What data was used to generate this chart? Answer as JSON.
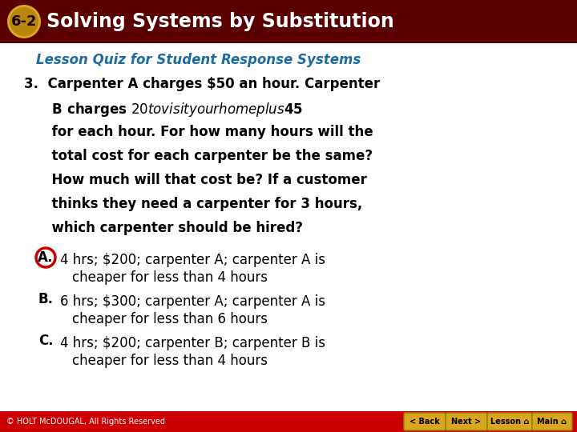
{
  "header_bg": "#5a0000",
  "badge_bg_outer": "#DAA520",
  "badge_bg_inner": "#B8860B",
  "header_number_text": "6-2",
  "header_title": "Solving Systems by Substitution",
  "header_text_color": "#FFFFFF",
  "subtitle": "Lesson Quiz for Student Response Systems",
  "subtitle_color": "#1E6B9E",
  "body_bg": "#FFFFFF",
  "question_color": "#000000",
  "answer_color": "#000000",
  "circle_A_color": "#CC0000",
  "footer_bg": "#CC0000",
  "footer_text": "© HOLT McDOUGAL, All Rights Reserved",
  "footer_text_color": "#FFFFFF",
  "button_bg": "#DAA520",
  "button_text_color": "#000000",
  "buttons": [
    "< Back",
    "Next >",
    "Lesson ⌂",
    "Main ⌂"
  ],
  "question_lines": [
    "3.  Carpenter A charges $50 an hour. Carpenter",
    "      B charges $20 to visit your home plus $45",
    "      for each hour. For how many hours will the",
    "      total cost for each carpenter be the same?",
    "      How much will that cost be? If a customer",
    "      thinks they need a carpenter for 3 hours,",
    "      which carpenter should be hired?"
  ],
  "answer_A_line1": "4 hrs; $200; carpenter A; carpenter A is",
  "answer_A_line2": "cheaper for less than 4 hours",
  "answer_B_line1": "6 hrs; $300; carpenter A; carpenter A is",
  "answer_B_line2": "cheaper for less than 6 hours",
  "answer_C_line1": "4 hrs; $200; carpenter B; carpenter B is",
  "answer_C_line2": "cheaper for less than 4 hours"
}
